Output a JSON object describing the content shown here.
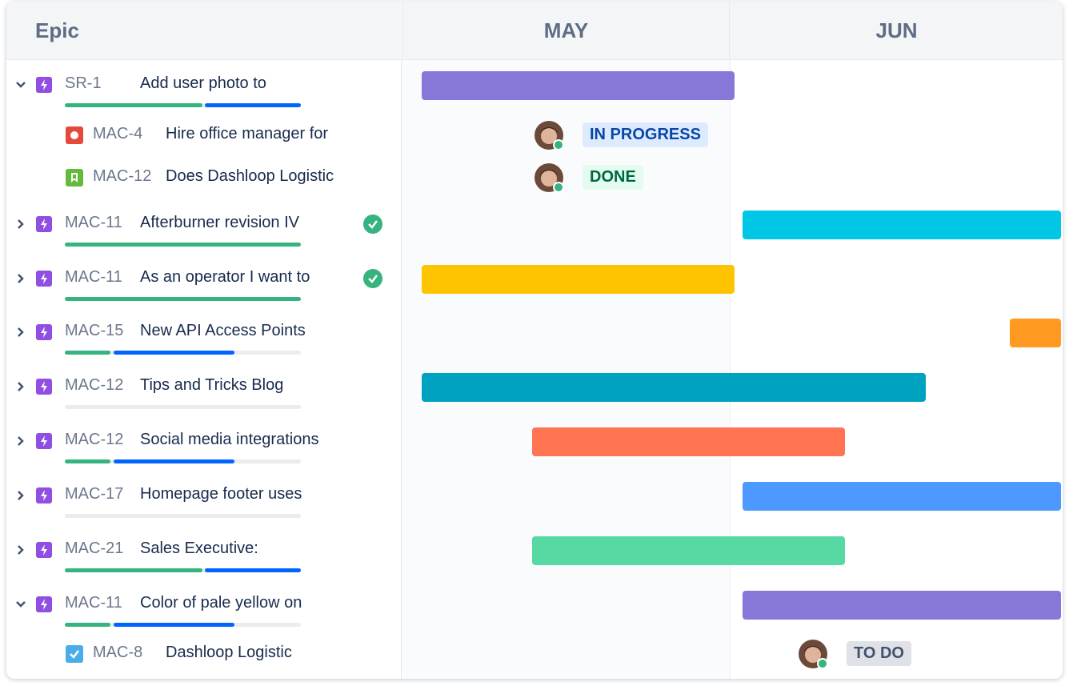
{
  "header": {
    "title": "Epic",
    "months": [
      "MAY",
      "JUN"
    ]
  },
  "rows": [
    {
      "key": "SR-1",
      "title": "Add user photo to"
    },
    {
      "key": "MAC-4",
      "title": "Hire office manager for",
      "status": "IN PROGRESS"
    },
    {
      "key": "MAC-12",
      "title": "Does Dashloop Logistic",
      "status": "DONE"
    },
    {
      "key": "MAC-11",
      "title": "Afterburner revision IV"
    },
    {
      "key": "MAC-11",
      "title": "As an operator I want to"
    },
    {
      "key": "MAC-15",
      "title": "New API Access Points"
    },
    {
      "key": "MAC-12",
      "title": "Tips and Tricks Blog"
    },
    {
      "key": "MAC-12",
      "title": "Social media integrations"
    },
    {
      "key": "MAC-17",
      "title": "Homepage footer uses"
    },
    {
      "key": "MAC-21",
      "title": "Sales Executive:"
    },
    {
      "key": "MAC-11",
      "title": "Color of pale yellow on"
    },
    {
      "key": "MAC-8",
      "title": "Dashloop Logistic",
      "status": "TO DO"
    }
  ]
}
